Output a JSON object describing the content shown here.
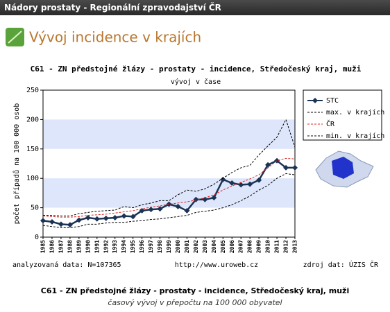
{
  "header": {
    "title": "Nádory prostaty - Regionální zpravodajství ČR"
  },
  "page": {
    "title": "Vývoj incidence v krajích"
  },
  "chart_data": {
    "type": "line",
    "title": "C61 - ZN předstojné žlázy - prostaty - incidence, Středočeský kraj, muži",
    "subtitle": "vývoj v čase",
    "y_label": "počet případů na 100 000 osob",
    "x": [
      1985,
      1986,
      1987,
      1988,
      1989,
      1990,
      1991,
      1992,
      1993,
      1994,
      1995,
      1996,
      1997,
      1998,
      1999,
      2000,
      2001,
      2002,
      2003,
      2004,
      2005,
      2006,
      2007,
      2008,
      2009,
      2010,
      2011,
      2012,
      2013
    ],
    "xlim": [
      1985,
      2013
    ],
    "ylim": [
      0,
      250
    ],
    "yticks": [
      0,
      50,
      100,
      150,
      200,
      250
    ],
    "legend": "right",
    "series": [
      {
        "name": "STC",
        "color": "#1b3354",
        "values": [
          28,
          26,
          22,
          21,
          29,
          33,
          31,
          32,
          33,
          36,
          35,
          45,
          47,
          48,
          56,
          52,
          45,
          64,
          64,
          67,
          98,
          92,
          89,
          90,
          97,
          123,
          130,
          118,
          118
        ]
      },
      {
        "name": "max. v krajích",
        "color": "#000000",
        "values": [
          37,
          37,
          36,
          36,
          40,
          42,
          44,
          45,
          46,
          52,
          50,
          55,
          58,
          62,
          62,
          72,
          80,
          78,
          82,
          90,
          100,
          110,
          118,
          122,
          140,
          155,
          170,
          200,
          153
        ]
      },
      {
        "name": "ČR",
        "color": "#e02020",
        "values": [
          36,
          35,
          34,
          34,
          35,
          37,
          38,
          39,
          41,
          43,
          45,
          48,
          51,
          53,
          56,
          58,
          60,
          63,
          67,
          72,
          80,
          87,
          93,
          99,
          106,
          118,
          130,
          134,
          133
        ]
      },
      {
        "name": "min. v krajích",
        "color": "#000000",
        "values": [
          20,
          18,
          16,
          16,
          18,
          22,
          22,
          24,
          25,
          25,
          27,
          28,
          30,
          31,
          33,
          35,
          37,
          42,
          44,
          46,
          50,
          55,
          62,
          70,
          80,
          88,
          100,
          108,
          106
        ]
      }
    ],
    "annotations": [
      "analyzovaná data: N=107365",
      "http://www.uroweb.cz",
      "zdroj dat: ÚZIS ČR"
    ]
  },
  "caption": {
    "title": "C61 - ZN předstojné žlázy - prostaty - incidence, Středočeský kraj, muži",
    "subtitle": "časový vývoj v přepočtu na 100 000 obyvatel"
  }
}
